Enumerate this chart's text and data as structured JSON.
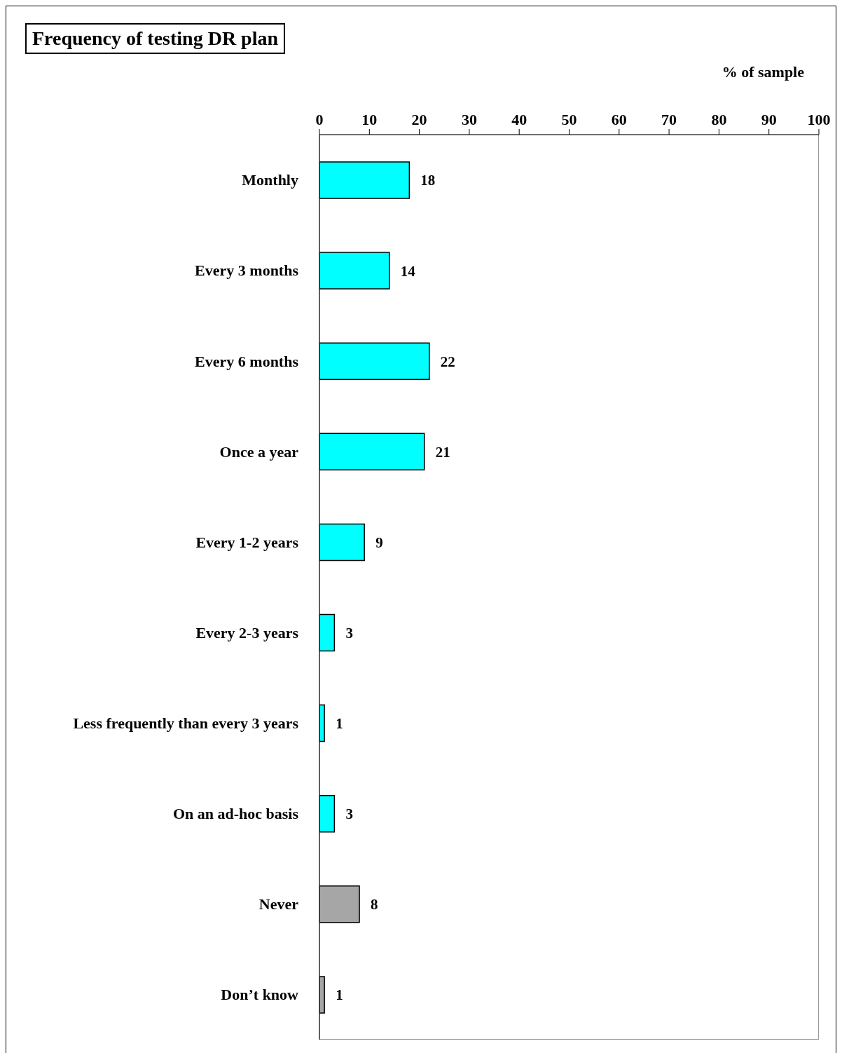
{
  "chart_data": {
    "type": "bar",
    "orientation": "horizontal",
    "title": "Frequency of testing DR plan",
    "xlabel": "% of sample",
    "categories": [
      "Monthly",
      "Every 3 months",
      "Every 6 months",
      "Once a year",
      "Every 1-2 years",
      "Every 2-3 years",
      "Less frequently than every 3 years",
      "On an ad-hoc basis",
      "Never",
      "Don’t know"
    ],
    "values": [
      18,
      14,
      22,
      21,
      9,
      3,
      1,
      3,
      8,
      1
    ],
    "colors": [
      "#00ffff",
      "#00ffff",
      "#00ffff",
      "#00ffff",
      "#00ffff",
      "#00ffff",
      "#00ffff",
      "#00ffff",
      "#a6a6a6",
      "#a6a6a6"
    ],
    "xlim": [
      0,
      100
    ],
    "xticks": [
      0,
      10,
      20,
      30,
      40,
      50,
      60,
      70,
      80,
      90,
      100
    ],
    "data_labels": true
  }
}
